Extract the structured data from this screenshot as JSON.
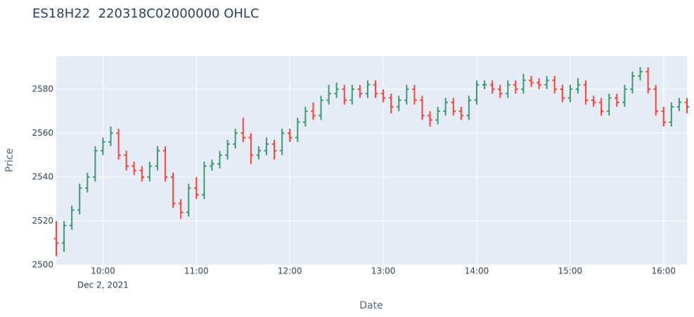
{
  "chart_data": {
    "type": "ohlc",
    "title": "ES18H22  220318C02000000 OHLC",
    "x_label": "Date",
    "y_label": "Price",
    "x": [
      "2021-12-02 09:30",
      "2021-12-02 09:35",
      "2021-12-02 09:40",
      "2021-12-02 09:45",
      "2021-12-02 09:50",
      "2021-12-02 09:55",
      "2021-12-02 10:00",
      "2021-12-02 10:05",
      "2021-12-02 10:10",
      "2021-12-02 10:15",
      "2021-12-02 10:20",
      "2021-12-02 10:25",
      "2021-12-02 10:30",
      "2021-12-02 10:35",
      "2021-12-02 10:40",
      "2021-12-02 10:45",
      "2021-12-02 10:50",
      "2021-12-02 10:55",
      "2021-12-02 11:00",
      "2021-12-02 11:05",
      "2021-12-02 11:10",
      "2021-12-02 11:15",
      "2021-12-02 11:20",
      "2021-12-02 11:25",
      "2021-12-02 11:30",
      "2021-12-02 11:35",
      "2021-12-02 11:40",
      "2021-12-02 11:45",
      "2021-12-02 11:50",
      "2021-12-02 11:55",
      "2021-12-02 12:00",
      "2021-12-02 12:05",
      "2021-12-02 12:10",
      "2021-12-02 12:15",
      "2021-12-02 12:20",
      "2021-12-02 12:25",
      "2021-12-02 12:30",
      "2021-12-02 12:35",
      "2021-12-02 12:40",
      "2021-12-02 12:45",
      "2021-12-02 12:50",
      "2021-12-02 12:55",
      "2021-12-02 13:00",
      "2021-12-02 13:05",
      "2021-12-02 13:10",
      "2021-12-02 13:15",
      "2021-12-02 13:20",
      "2021-12-02 13:25",
      "2021-12-02 13:30",
      "2021-12-02 13:35",
      "2021-12-02 13:40",
      "2021-12-02 13:45",
      "2021-12-02 13:50",
      "2021-12-02 13:55",
      "2021-12-02 14:00",
      "2021-12-02 14:05",
      "2021-12-02 14:10",
      "2021-12-02 14:15",
      "2021-12-02 14:20",
      "2021-12-02 14:25",
      "2021-12-02 14:30",
      "2021-12-02 14:35",
      "2021-12-02 14:40",
      "2021-12-02 14:45",
      "2021-12-02 14:50",
      "2021-12-02 14:55",
      "2021-12-02 15:00",
      "2021-12-02 15:05",
      "2021-12-02 15:10",
      "2021-12-02 15:15",
      "2021-12-02 15:20",
      "2021-12-02 15:25",
      "2021-12-02 15:30",
      "2021-12-02 15:35",
      "2021-12-02 15:40",
      "2021-12-02 15:45",
      "2021-12-02 15:50",
      "2021-12-02 15:55",
      "2021-12-02 16:00",
      "2021-12-02 16:05",
      "2021-12-02 16:10",
      "2021-12-02 16:15"
    ],
    "open": [
      2512,
      2510,
      2518,
      2525,
      2535,
      2540,
      2552,
      2556,
      2560,
      2550,
      2545,
      2543,
      2540,
      2545,
      2552,
      2540,
      2528,
      2524,
      2535,
      2532,
      2545,
      2546,
      2550,
      2555,
      2560,
      2558,
      2550,
      2552,
      2555,
      2552,
      2560,
      2558,
      2565,
      2570,
      2568,
      2575,
      2578,
      2580,
      2575,
      2580,
      2578,
      2582,
      2578,
      2576,
      2572,
      2575,
      2580,
      2575,
      2568,
      2566,
      2570,
      2574,
      2570,
      2568,
      2575,
      2582,
      2582,
      2580,
      2578,
      2582,
      2580,
      2584,
      2583,
      2582,
      2584,
      2580,
      2576,
      2580,
      2582,
      2575,
      2574,
      2570,
      2576,
      2574,
      2580,
      2586,
      2588,
      2580,
      2570,
      2565,
      2572,
      2574
    ],
    "high": [
      2520,
      2520,
      2527,
      2537,
      2542,
      2554,
      2558,
      2563,
      2562,
      2552,
      2547,
      2545,
      2547,
      2554,
      2554,
      2542,
      2530,
      2537,
      2540,
      2547,
      2548,
      2552,
      2557,
      2562,
      2567,
      2560,
      2554,
      2558,
      2557,
      2562,
      2562,
      2567,
      2572,
      2574,
      2577,
      2582,
      2583,
      2582,
      2582,
      2582,
      2584,
      2584,
      2580,
      2578,
      2577,
      2582,
      2582,
      2577,
      2570,
      2572,
      2576,
      2576,
      2572,
      2577,
      2584,
      2584,
      2584,
      2582,
      2584,
      2584,
      2587,
      2586,
      2585,
      2586,
      2586,
      2582,
      2582,
      2585,
      2584,
      2577,
      2576,
      2578,
      2578,
      2582,
      2588,
      2590,
      2590,
      2582,
      2572,
      2574,
      2576,
      2576
    ],
    "low": [
      2504,
      2506,
      2516,
      2523,
      2533,
      2538,
      2550,
      2554,
      2548,
      2543,
      2541,
      2538,
      2538,
      2543,
      2538,
      2526,
      2521,
      2522,
      2530,
      2530,
      2543,
      2544,
      2548,
      2553,
      2556,
      2546,
      2548,
      2550,
      2548,
      2550,
      2556,
      2556,
      2563,
      2566,
      2566,
      2573,
      2576,
      2573,
      2573,
      2576,
      2576,
      2576,
      2574,
      2569,
      2570,
      2573,
      2573,
      2566,
      2563,
      2564,
      2568,
      2568,
      2566,
      2566,
      2573,
      2580,
      2578,
      2576,
      2576,
      2578,
      2578,
      2581,
      2580,
      2580,
      2578,
      2574,
      2574,
      2578,
      2573,
      2572,
      2568,
      2568,
      2572,
      2572,
      2578,
      2584,
      2578,
      2568,
      2563,
      2563,
      2570,
      2569
    ],
    "close": [
      2510,
      2518,
      2525,
      2535,
      2540,
      2552,
      2556,
      2560,
      2550,
      2545,
      2543,
      2540,
      2545,
      2552,
      2540,
      2528,
      2524,
      2535,
      2532,
      2545,
      2546,
      2550,
      2555,
      2560,
      2558,
      2550,
      2552,
      2555,
      2552,
      2560,
      2558,
      2565,
      2570,
      2568,
      2575,
      2578,
      2580,
      2575,
      2580,
      2578,
      2582,
      2578,
      2576,
      2572,
      2575,
      2580,
      2575,
      2568,
      2566,
      2570,
      2574,
      2570,
      2568,
      2575,
      2582,
      2582,
      2580,
      2578,
      2582,
      2580,
      2584,
      2583,
      2582,
      2584,
      2580,
      2576,
      2580,
      2582,
      2575,
      2574,
      2570,
      2576,
      2574,
      2580,
      2586,
      2588,
      2580,
      2570,
      2565,
      2572,
      2574,
      2572
    ],
    "increasing_color": "#3d9970",
    "decreasing_color": "#ff4136",
    "xlim": [
      "2021-12-02 09:30",
      "2021-12-02 16:15"
    ],
    "xticks": [
      {
        "value": "2021-12-02 10:00",
        "label": "10:00"
      },
      {
        "value": "2021-12-02 11:00",
        "label": "11:00"
      },
      {
        "value": "2021-12-02 12:00",
        "label": "12:00"
      },
      {
        "value": "2021-12-02 13:00",
        "label": "13:00"
      },
      {
        "value": "2021-12-02 14:00",
        "label": "14:00"
      },
      {
        "value": "2021-12-02 15:00",
        "label": "15:00"
      },
      {
        "value": "2021-12-02 16:00",
        "label": "16:00"
      }
    ],
    "xtick_date_label": "Dec 2, 2021",
    "ylim": [
      2500,
      2595
    ],
    "yticks": [
      2500,
      2520,
      2540,
      2560,
      2580
    ],
    "grid": true
  }
}
